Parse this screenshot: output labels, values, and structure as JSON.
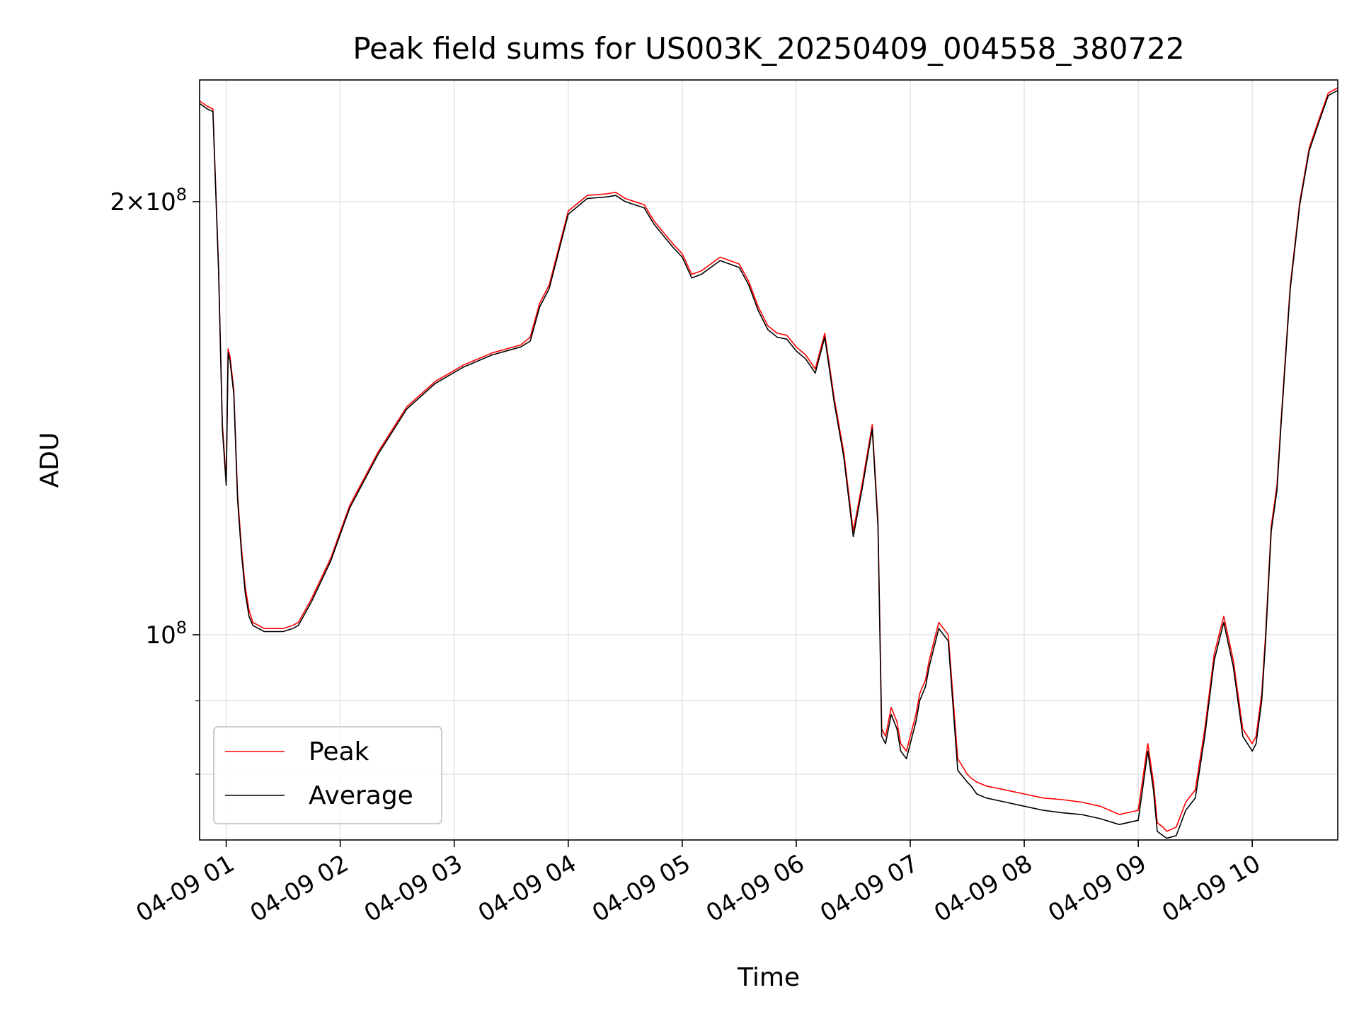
{
  "chart_data": {
    "type": "line",
    "title": "Peak field sums for US003K_20250409_004558_380722",
    "xlabel": "Time",
    "ylabel": "ADU",
    "yscale": "log",
    "xlim": [
      "2025-04-09 00:46",
      "2025-04-09 10:45"
    ],
    "ylim": [
      72000000,
      243000000
    ],
    "grid": true,
    "legend_position": "lower-left",
    "xticks": [
      "04-09 01",
      "04-09 02",
      "04-09 03",
      "04-09 04",
      "04-09 05",
      "04-09 06",
      "04-09 07",
      "04-09 08",
      "04-09 09",
      "04-09 10"
    ],
    "xtick_times": [
      "2025-04-09 01:00",
      "2025-04-09 02:00",
      "2025-04-09 03:00",
      "2025-04-09 04:00",
      "2025-04-09 05:00",
      "2025-04-09 06:00",
      "2025-04-09 07:00",
      "2025-04-09 08:00",
      "2025-04-09 09:00",
      "2025-04-09 10:00"
    ],
    "yticks_major": [
      {
        "value": 100000000,
        "mantissa": "",
        "exponent": "8"
      },
      {
        "value": 200000000,
        "mantissa": "2",
        "exponent": "8"
      }
    ],
    "yticks_minor": [
      80000000,
      90000000
    ],
    "x": [
      "00:46",
      "00:50",
      "00:53",
      "00:56",
      "00:58",
      "01:00",
      "01:01",
      "01:02",
      "01:04",
      "01:06",
      "01:08",
      "01:10",
      "01:12",
      "01:14",
      "01:17",
      "01:20",
      "01:25",
      "01:30",
      "01:35",
      "01:38",
      "01:45",
      "01:55",
      "02:05",
      "02:20",
      "02:35",
      "02:50",
      "03:05",
      "03:20",
      "03:35",
      "03:40",
      "03:45",
      "03:50",
      "04:00",
      "04:10",
      "04:20",
      "04:25",
      "04:30",
      "04:40",
      "04:45",
      "04:55",
      "05:00",
      "05:05",
      "05:10",
      "05:15",
      "05:20",
      "05:25",
      "05:30",
      "05:35",
      "05:40",
      "05:45",
      "05:50",
      "05:55",
      "06:00",
      "06:05",
      "06:10",
      "06:15",
      "06:20",
      "06:25",
      "06:30",
      "06:35",
      "06:40",
      "06:43",
      "06:45",
      "06:47",
      "06:50",
      "06:53",
      "06:55",
      "06:58",
      "07:00",
      "07:03",
      "07:05",
      "07:08",
      "07:10",
      "07:15",
      "07:20",
      "07:25",
      "07:30",
      "07:32",
      "07:35",
      "07:40",
      "07:50",
      "08:00",
      "08:10",
      "08:20",
      "08:30",
      "08:40",
      "08:50",
      "09:00",
      "09:05",
      "09:08",
      "09:10",
      "09:13",
      "09:15",
      "09:20",
      "09:25",
      "09:30",
      "09:35",
      "09:40",
      "09:45",
      "09:50",
      "09:55",
      "10:00",
      "10:02",
      "10:05",
      "10:07",
      "10:10",
      "10:13",
      "10:15",
      "10:18",
      "10:20",
      "10:25",
      "10:30",
      "10:35",
      "10:40",
      "10:45"
    ],
    "series": [
      {
        "name": "Peak",
        "color": "#ff0000",
        "values": [
          235000000,
          233000000,
          232000000,
          180000000,
          140000000,
          128000000,
          158000000,
          156000000,
          148000000,
          125000000,
          115000000,
          108000000,
          104000000,
          102000000,
          101500000,
          101000000,
          101000000,
          101000000,
          101500000,
          102000000,
          106000000,
          113000000,
          123000000,
          134000000,
          144000000,
          150000000,
          154000000,
          157000000,
          159000000,
          161000000,
          170000000,
          175000000,
          197000000,
          202000000,
          202500000,
          203000000,
          201000000,
          199000000,
          194000000,
          187000000,
          184000000,
          178000000,
          179000000,
          181000000,
          183000000,
          182000000,
          181000000,
          176000000,
          169000000,
          164000000,
          162000000,
          161500000,
          158500000,
          156500000,
          153000000,
          162000000,
          146000000,
          134000000,
          118000000,
          128000000,
          140000000,
          120000000,
          86000000,
          85000000,
          89000000,
          87000000,
          84000000,
          83000000,
          85000000,
          88000000,
          91000000,
          93000000,
          96000000,
          102000000,
          100000000,
          82000000,
          80000000,
          79500000,
          79000000,
          78500000,
          78000000,
          77500000,
          77000000,
          76800000,
          76500000,
          76000000,
          75000000,
          75500000,
          84000000,
          79000000,
          74000000,
          73500000,
          73000000,
          73500000,
          76500000,
          78000000,
          86000000,
          97000000,
          103000000,
          96000000,
          86000000,
          84000000,
          85000000,
          91000000,
          100000000,
          119000000,
          127000000,
          140000000,
          160000000,
          175000000,
          200000000,
          218000000,
          228000000,
          238000000,
          240000000
        ]
      },
      {
        "name": "Average",
        "color": "#000000",
        "values": [
          234000000,
          232000000,
          231000000,
          179000000,
          139000000,
          127000000,
          157000000,
          155000000,
          147000000,
          124000000,
          114000000,
          107000000,
          103000000,
          101500000,
          101000000,
          100500000,
          100500000,
          100500000,
          101000000,
          101500000,
          105500000,
          112500000,
          122500000,
          133500000,
          143500000,
          149500000,
          153500000,
          156500000,
          158500000,
          160000000,
          169000000,
          174000000,
          196000000,
          201000000,
          201500000,
          202000000,
          200000000,
          198000000,
          193000000,
          186000000,
          183000000,
          177000000,
          178000000,
          180000000,
          182000000,
          181000000,
          180000000,
          175000000,
          168000000,
          163000000,
          161000000,
          160500000,
          157500000,
          155500000,
          152000000,
          161000000,
          145000000,
          133000000,
          117000000,
          127000000,
          139000000,
          119000000,
          85000000,
          84000000,
          88000000,
          86000000,
          83000000,
          82000000,
          84000000,
          87000000,
          90000000,
          92000000,
          95000000,
          101000000,
          99000000,
          80500000,
          79000000,
          78500000,
          77500000,
          77000000,
          76500000,
          76000000,
          75500000,
          75200000,
          75000000,
          74500000,
          73800000,
          74300000,
          83000000,
          78000000,
          73000000,
          72500000,
          72200000,
          72500000,
          75500000,
          77000000,
          85000000,
          96000000,
          102000000,
          95000000,
          85000000,
          83000000,
          84000000,
          90000000,
          99000000,
          118000000,
          126000000,
          139000000,
          159000000,
          174000000,
          199000000,
          217000000,
          227000000,
          237000000,
          239000000
        ]
      }
    ]
  }
}
